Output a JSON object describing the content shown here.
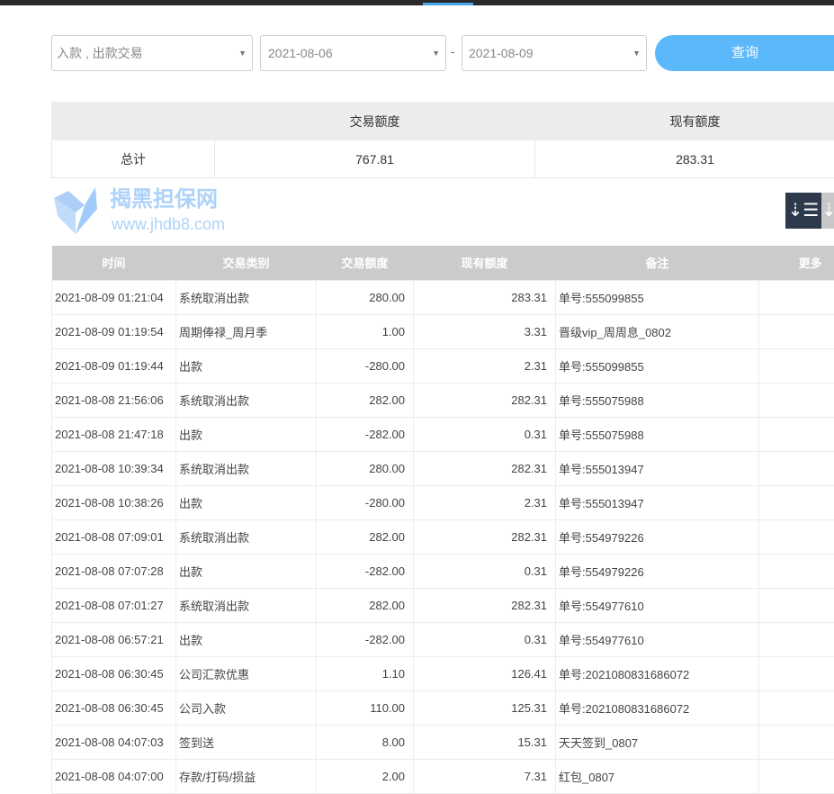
{
  "filters": {
    "type_select": "入款 , 出款交易",
    "date_from": "2021-08-06",
    "date_sep": "-",
    "date_to": "2021-08-09",
    "query_button": "查询"
  },
  "summary": {
    "headers": [
      "",
      "交易额度",
      "现有额度"
    ],
    "row": [
      "总计",
      "767.81",
      "283.31"
    ]
  },
  "table": {
    "headers": [
      "时间",
      "交易类别",
      "交易额度",
      "现有额度",
      "备注",
      "更多"
    ],
    "rows": [
      [
        "2021-08-09 01:21:04",
        "系统取消出款",
        "280.00",
        "283.31",
        "单号:555099855"
      ],
      [
        "2021-08-09 01:19:54",
        "周期俸禄_周月季",
        "1.00",
        "3.31",
        "晋级vip_周周息_0802"
      ],
      [
        "2021-08-09 01:19:44",
        "出款",
        "-280.00",
        "2.31",
        "单号:555099855"
      ],
      [
        "2021-08-08 21:56:06",
        "系统取消出款",
        "282.00",
        "282.31",
        "单号:555075988"
      ],
      [
        "2021-08-08 21:47:18",
        "出款",
        "-282.00",
        "0.31",
        "单号:555075988"
      ],
      [
        "2021-08-08 10:39:34",
        "系统取消出款",
        "280.00",
        "282.31",
        "单号:555013947"
      ],
      [
        "2021-08-08 10:38:26",
        "出款",
        "-280.00",
        "2.31",
        "单号:555013947"
      ],
      [
        "2021-08-08 07:09:01",
        "系统取消出款",
        "282.00",
        "282.31",
        "单号:554979226"
      ],
      [
        "2021-08-08 07:07:28",
        "出款",
        "-282.00",
        "0.31",
        "单号:554979226"
      ],
      [
        "2021-08-08 07:01:27",
        "系统取消出款",
        "282.00",
        "282.31",
        "单号:554977610"
      ],
      [
        "2021-08-08 06:57:21",
        "出款",
        "-282.00",
        "0.31",
        "单号:554977610"
      ],
      [
        "2021-08-08 06:30:45",
        "公司汇款优惠",
        "1.10",
        "126.41",
        "单号:2021080831686072"
      ],
      [
        "2021-08-08 06:30:45",
        "公司入款",
        "110.00",
        "125.31",
        "单号:2021080831686072"
      ],
      [
        "2021-08-08 04:07:03",
        "签到送",
        "8.00",
        "15.31",
        "天天签到_0807"
      ],
      [
        "2021-08-08 04:07:00",
        "存款/打码/损益",
        "2.00",
        "7.31",
        "红包_0807"
      ]
    ]
  },
  "watermark": {
    "name": "揭黑担保网",
    "url": "www.jhdb8.com"
  },
  "icons": {
    "sort_desc": "sort-descending-icon",
    "sort_asc": "sort-ascending-icon"
  },
  "colors": {
    "accent": "#5ab8fb",
    "dark": "#2d3a4b",
    "header": "#cbcbcb"
  }
}
